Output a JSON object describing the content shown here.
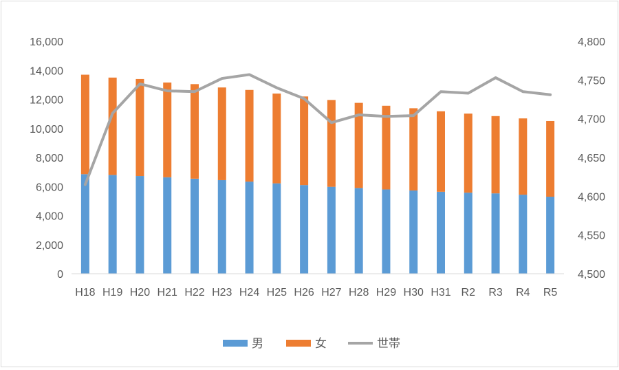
{
  "chart_data": {
    "type": "bar",
    "stacked": true,
    "categories": [
      "H18",
      "H19",
      "H20",
      "H21",
      "H22",
      "H23",
      "H24",
      "H25",
      "H26",
      "H27",
      "H28",
      "H29",
      "H30",
      "H31",
      "R2",
      "R3",
      "R4",
      "R5"
    ],
    "series": [
      {
        "name": "男",
        "type": "bar",
        "axis": "left",
        "color": "#5b9bd5",
        "values": [
          6850,
          6800,
          6720,
          6640,
          6540,
          6440,
          6340,
          6220,
          6100,
          5980,
          5900,
          5800,
          5730,
          5640,
          5580,
          5530,
          5440,
          5300
        ]
      },
      {
        "name": "女",
        "type": "bar",
        "axis": "left",
        "color": "#ed7d31",
        "values": [
          6850,
          6700,
          6680,
          6520,
          6510,
          6380,
          6310,
          6180,
          6100,
          5980,
          5860,
          5760,
          5660,
          5540,
          5440,
          5320,
          5250,
          5210
        ]
      },
      {
        "name": "世帯",
        "type": "line",
        "axis": "right",
        "color": "#a5a5a5",
        "values": [
          4615,
          4707,
          4745,
          4736,
          4735,
          4752,
          4757,
          4740,
          4726,
          4695,
          4705,
          4703,
          4704,
          4735,
          4733,
          4753,
          4735,
          4731
        ]
      }
    ],
    "ylim_left": [
      0,
      16000
    ],
    "yticks_left": [
      "0",
      "2,000",
      "4,000",
      "6,000",
      "8,000",
      "10,000",
      "12,000",
      "14,000",
      "16,000"
    ],
    "ylim_right": [
      4500,
      4800
    ],
    "yticks_right": [
      "4,500",
      "4,550",
      "4,600",
      "4,650",
      "4,700",
      "4,750",
      "4,800"
    ],
    "legend_position": "bottom",
    "grid": false
  }
}
